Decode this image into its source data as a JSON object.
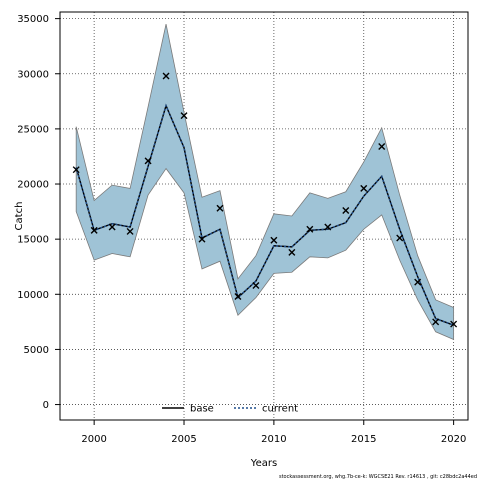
{
  "chart_data": {
    "type": "line",
    "xlabel": "Years",
    "ylabel": "Catch",
    "xlim": [
      1998.1,
      2020.8
    ],
    "ylim": [
      -1400,
      35600
    ],
    "xticks": [
      2000,
      2005,
      2010,
      2015,
      2020
    ],
    "yticks": [
      0,
      5000,
      10000,
      15000,
      20000,
      25000,
      30000,
      35000
    ],
    "grid": true,
    "legend_position": "bottom-center",
    "years": [
      1999,
      2000,
      2001,
      2002,
      2003,
      2004,
      2005,
      2006,
      2007,
      2008,
      2009,
      2010,
      2011,
      2012,
      2013,
      2014,
      2015,
      2016,
      2017,
      2018,
      2019,
      2020
    ],
    "observed": [
      21300,
      15800,
      16100,
      15700,
      22100,
      29800,
      26200,
      15000,
      17800,
      9800,
      10800,
      14900,
      13800,
      15900,
      16100,
      17600,
      19600,
      23400,
      15100,
      11100,
      7500,
      7300
    ],
    "ci_upper": [
      25200,
      18500,
      19900,
      19600,
      27000,
      34500,
      26500,
      18800,
      19400,
      11400,
      13500,
      17300,
      17100,
      19200,
      18700,
      19300,
      22000,
      25100,
      19000,
      13500,
      9500,
      8800
    ],
    "ci_lower": [
      17500,
      13100,
      13700,
      13400,
      19000,
      21400,
      19200,
      12300,
      13000,
      8100,
      9700,
      11900,
      12000,
      13400,
      13300,
      14000,
      15900,
      17200,
      13100,
      9500,
      6600,
      5900
    ],
    "series": [
      {
        "name": "base",
        "color": "#000000",
        "style": "solid",
        "values": [
          21500,
          15800,
          16400,
          16100,
          21600,
          27100,
          23300,
          15100,
          15900,
          9700,
          11200,
          14400,
          14300,
          15800,
          15900,
          16500,
          18900,
          20700,
          15900,
          11600,
          7800,
          7200
        ]
      },
      {
        "name": "current",
        "color": "#1f4e8c",
        "style": "dotted",
        "values": [
          21500,
          15800,
          16400,
          16100,
          21600,
          27100,
          23300,
          15100,
          15900,
          9700,
          11200,
          14400,
          14300,
          15800,
          15900,
          16500,
          18900,
          20700,
          15900,
          11600,
          7800,
          7200
        ]
      }
    ],
    "band_color": "#9fc3d6",
    "band_edge_color": "#7a7a7a",
    "marker": "x"
  },
  "footer": "stockassessment.org, whg.7b-ce-k: WGCSE21 Rev. r14613 , git: c28bdc2a44ed"
}
